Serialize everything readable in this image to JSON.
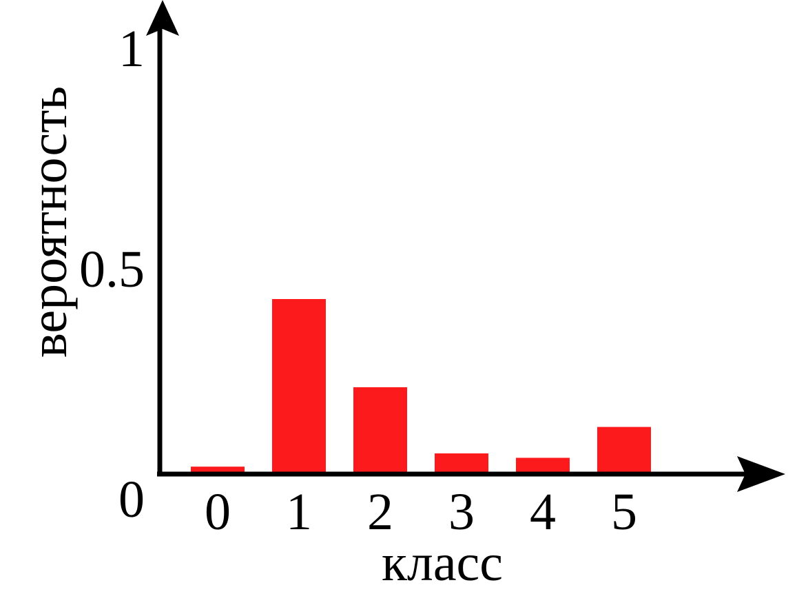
{
  "chart_data": {
    "type": "bar",
    "categories": [
      "0",
      "1",
      "2",
      "3",
      "4",
      "5"
    ],
    "values": [
      0.02,
      0.4,
      0.2,
      0.05,
      0.04,
      0.11
    ],
    "xlabel": "класс",
    "ylabel": "вероятность",
    "ylim": [
      0,
      1
    ],
    "yticks": [
      {
        "value": 0,
        "label": "0"
      },
      {
        "value": 0.5,
        "label": "0.5"
      },
      {
        "value": 1,
        "label": "1"
      }
    ],
    "bar_color": "#fd1a1c",
    "axis_color": "#000000",
    "grid": false,
    "legend": "none"
  }
}
